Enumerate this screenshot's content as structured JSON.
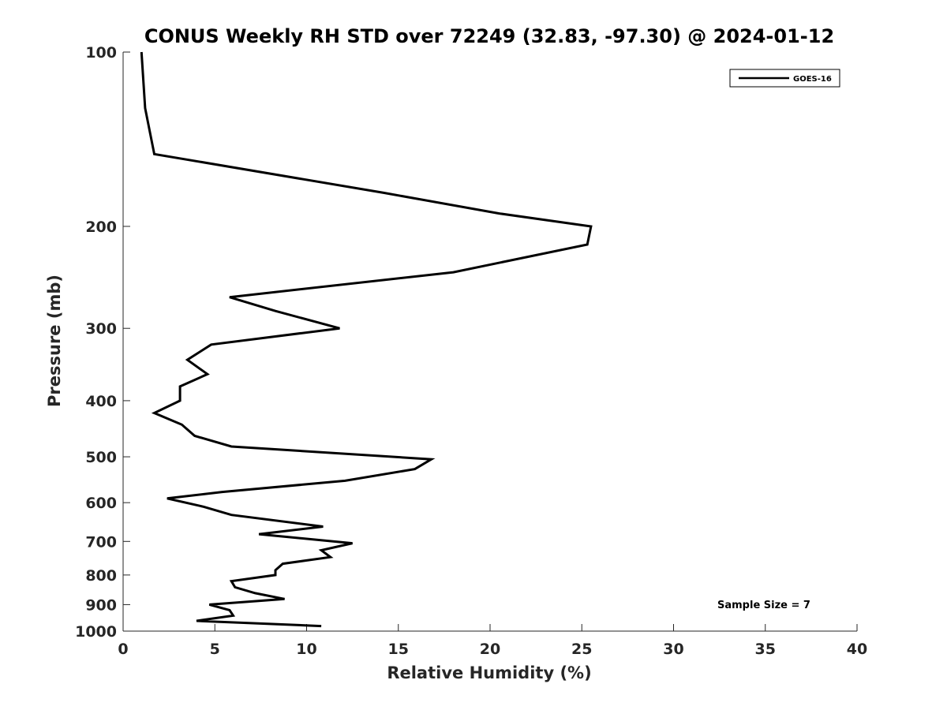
{
  "chart_data": {
    "type": "line",
    "title": "CONUS Weekly RH STD over 72249 (32.83, -97.30) @ 2024-01-12",
    "xlabel": "Relative Humidity (%)",
    "ylabel": "Pressure (mb)",
    "xlim": [
      0,
      40
    ],
    "ylim": [
      100,
      1000
    ],
    "yscale": "log",
    "yreversed": true,
    "grid": false,
    "legend_position": "top-right",
    "xticks": [
      0,
      5,
      10,
      15,
      20,
      25,
      30,
      35,
      40
    ],
    "yticks": [
      100,
      200,
      300,
      400,
      500,
      600,
      700,
      800,
      900,
      1000
    ],
    "annotation": "Sample Size = 7",
    "series": [
      {
        "name": "GOES-16",
        "color": "#000000",
        "x": [
          1.0,
          1.2,
          1.7,
          14.2,
          20.5,
          25.5,
          25.3,
          18.0,
          5.8,
          8.3,
          11.8,
          4.8,
          3.5,
          4.6,
          3.1,
          3.1,
          1.7,
          3.2,
          3.9,
          5.9,
          16.8,
          15.9,
          12.1,
          5.4,
          2.4,
          4.4,
          5.9,
          10.9,
          7.4,
          12.5,
          10.8,
          11.3,
          8.7,
          8.3,
          8.3,
          5.9,
          6.1,
          7.2,
          8.8,
          4.7,
          5.8,
          6.0,
          4.0,
          10.8
        ],
        "y": [
          100,
          125,
          150,
          175,
          190,
          200,
          215,
          240,
          265,
          280,
          300,
          320,
          340,
          360,
          378,
          400,
          420,
          440,
          460,
          480,
          505,
          525,
          550,
          575,
          590,
          610,
          630,
          660,
          680,
          705,
          725,
          745,
          765,
          785,
          800,
          820,
          840,
          860,
          880,
          900,
          920,
          940,
          960,
          980
        ]
      }
    ]
  }
}
